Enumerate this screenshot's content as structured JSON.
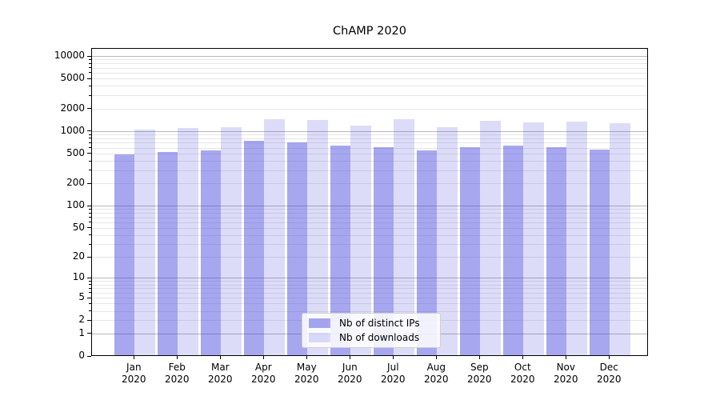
{
  "title": "ChAMP 2020",
  "chart_data": {
    "type": "bar",
    "title": "ChAMP 2020",
    "categories": [
      "Jan",
      "Feb",
      "Mar",
      "Apr",
      "May",
      "Jun",
      "Jul",
      "Aug",
      "Sep",
      "Oct",
      "Nov",
      "Dec"
    ],
    "x_year_label": "2020",
    "series": [
      {
        "name": "Nb of distinct IPs",
        "color": "rgba(68,68,221,0.47)",
        "values": [
          480,
          510,
          540,
          720,
          690,
          630,
          600,
          540,
          600,
          620,
          600,
          550
        ]
      },
      {
        "name": "Nb of downloads",
        "color": "rgba(68,68,221,0.19)",
        "values": [
          1030,
          1060,
          1090,
          1420,
          1360,
          1150,
          1420,
          1110,
          1330,
          1280,
          1320,
          1250
        ]
      }
    ],
    "yscale": "symlog",
    "yticks": [
      0,
      1,
      2,
      5,
      10,
      20,
      50,
      100,
      200,
      500,
      1000,
      2000,
      5000,
      10000
    ],
    "major_grid_values": [
      1,
      10,
      100,
      1000,
      10000
    ],
    "minor_grid_multiples": [
      2,
      3,
      4,
      5,
      6,
      7,
      8,
      9
    ],
    "ylim": [
      0,
      12600
    ],
    "grid": true,
    "legend_position": "bottom-center",
    "colors": {
      "major_grid": "#b8b8b8",
      "minor_grid": "#e7e7e7",
      "axis": "#000000",
      "background": "#ffffff"
    }
  }
}
